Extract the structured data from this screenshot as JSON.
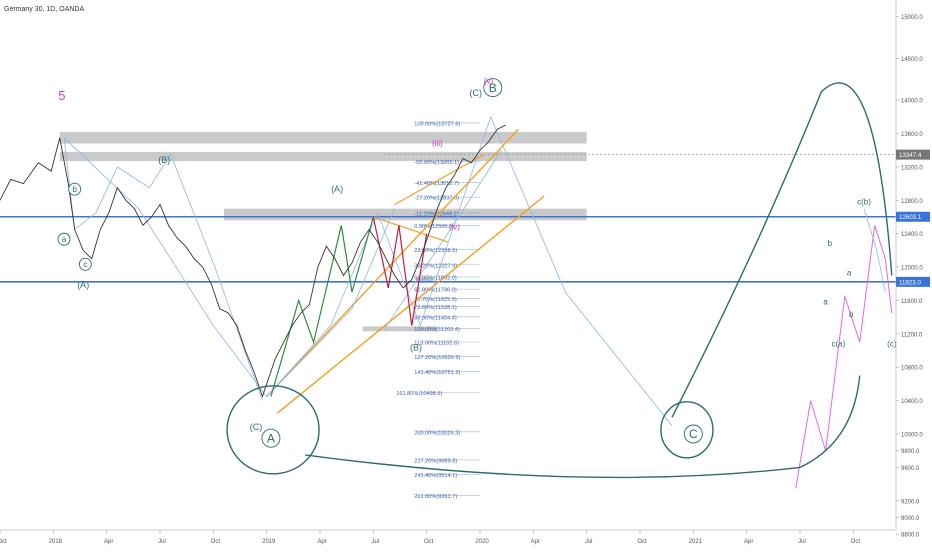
{
  "header": {
    "title": "Germany 30, 1D, OANDA"
  },
  "price_tags": [
    {
      "text": "13347.4",
      "y": 13347.4,
      "color": "#777777"
    },
    {
      "text": "12603.1",
      "y": 12603.1,
      "color": "#3b73d9"
    },
    {
      "text": "11823.0",
      "y": 11823.0,
      "color": "#3b73d9"
    }
  ],
  "chart_data": {
    "type": "line",
    "title": "Germany 30, 1D, OANDA",
    "xlabel": "",
    "ylabel": "",
    "xlim": [
      2017.75,
      2021.95
    ],
    "ylim": [
      8850,
      15200
    ],
    "grid": false,
    "y_ticks": [
      15000,
      14500,
      14000,
      13600,
      13200,
      12800,
      12400,
      12000,
      11600,
      11200,
      10800,
      10400,
      10000,
      9800,
      9600,
      9200,
      9000,
      8800
    ],
    "y_tick_labels": [
      "15000.0",
      "14500.0",
      "14000.0",
      "13600.0",
      "13200.0",
      "12800.0",
      "12400.0",
      "12000.0",
      "11600.0",
      "11200.0",
      "10800.0",
      "10400.0",
      "10000.0",
      "9800.0",
      "9600.0",
      "9200.0",
      "9000.0",
      "8800.0"
    ],
    "x_ticks": [
      {
        "label": "Oct",
        "x": 2017.75
      },
      {
        "label": "2018",
        "x": 2018.0
      },
      {
        "label": "Apr",
        "x": 2018.25
      },
      {
        "label": "Jul",
        "x": 2018.5
      },
      {
        "label": "Oct",
        "x": 2018.75
      },
      {
        "label": "2019",
        "x": 2019.0
      },
      {
        "label": "Apr",
        "x": 2019.25
      },
      {
        "label": "Jul",
        "x": 2019.5
      },
      {
        "label": "Oct",
        "x": 2019.75
      },
      {
        "label": "2020",
        "x": 2020.0
      },
      {
        "label": "Apr",
        "x": 2020.25
      },
      {
        "label": "Jul",
        "x": 2020.5
      },
      {
        "label": "Oct",
        "x": 2020.75
      },
      {
        "label": "2021",
        "x": 2021.0
      },
      {
        "label": "Apr",
        "x": 2021.25
      },
      {
        "label": "Jul",
        "x": 2021.5
      },
      {
        "label": "Oct",
        "x": 2021.75
      }
    ],
    "price": {
      "x": [
        2017.75,
        2017.8,
        2017.86,
        2017.93,
        2017.99,
        2018.03,
        2018.07,
        2018.1,
        2018.14,
        2018.18,
        2018.22,
        2018.26,
        2018.3,
        2018.34,
        2018.38,
        2018.42,
        2018.46,
        2018.5,
        2018.54,
        2018.58,
        2018.62,
        2018.66,
        2018.7,
        2018.74,
        2018.78,
        2018.82,
        2018.86,
        2018.9,
        2018.94,
        2018.98,
        2019.0,
        2019.04,
        2019.08,
        2019.12,
        2019.16,
        2019.2,
        2019.24,
        2019.28,
        2019.32,
        2019.36,
        2019.4,
        2019.44,
        2019.48,
        2019.52,
        2019.56,
        2019.6,
        2019.64,
        2019.68,
        2019.72,
        2019.76,
        2019.8,
        2019.84,
        2019.88,
        2019.92,
        2019.96,
        2020.0,
        2020.04,
        2020.08,
        2020.12
      ],
      "y": [
        12800,
        13050,
        13000,
        13250,
        13150,
        13550,
        13000,
        12450,
        12200,
        12100,
        12450,
        12650,
        12950,
        12800,
        12700,
        12500,
        12600,
        12750,
        12500,
        12350,
        12250,
        12100,
        12000,
        11800,
        11500,
        11450,
        11300,
        11000,
        10750,
        10450,
        10600,
        10900,
        11100,
        11300,
        11450,
        11550,
        12000,
        12250,
        12100,
        11900,
        12050,
        12300,
        12450,
        12300,
        12100,
        11900,
        11750,
        11850,
        12100,
        12400,
        12700,
        12950,
        13100,
        13300,
        13250,
        13400,
        13500,
        13650,
        13700
      ]
    },
    "levels": [
      {
        "label": "100.00%(13727.6)",
        "y": 13727.6
      },
      {
        "label": "-55.90%(13265.1)",
        "y": 13265.1
      },
      {
        "label": "-41.40%(13012.7)",
        "y": 13012.7
      },
      {
        "label": "-27.20%(12837.0)",
        "y": 12837.0
      },
      {
        "label": "-11.10%(12649.2)",
        "y": 12649.2
      },
      {
        "label": "0.00%(12500.9)",
        "y": 12500.9
      },
      {
        "label": "23.60%(12208.6)",
        "y": 12208.6
      },
      {
        "label": "38.20%(12027.9)",
        "y": 12027.9
      },
      {
        "label": "50.00%(11882.0)",
        "y": 11882.0
      },
      {
        "label": "61.80%(11736.0)",
        "y": 11736.0
      },
      {
        "label": "70.70%(11625.9)",
        "y": 11625.9
      },
      {
        "label": "78.60%(11528.1)",
        "y": 11528.1
      },
      {
        "label": "88.60%(11404.4)",
        "y": 11404.4
      },
      {
        "label": "100.00%(11263.4)",
        "y": 11263.4
      },
      {
        "label": "113.00%(11102.6)",
        "y": 11102.6
      },
      {
        "label": "127.20%(10926.9)",
        "y": 10926.9
      },
      {
        "label": "141.40%(10751.2)",
        "y": 10751.2
      },
      {
        "label": "161.80%(10498.9)",
        "y": 10498.9
      },
      {
        "label": "200.00%(10026.3)",
        "y": 10026.3
      },
      {
        "label": "227.20%(9689.8)",
        "y": 9689.8
      },
      {
        "label": "241.40%(9514.1)",
        "y": 9514.1
      },
      {
        "label": "261.80%(9261.7)",
        "y": 9261.7
      }
    ],
    "zones": [
      {
        "x0": 2018.03,
        "x1": 2020.5,
        "y0": 13480,
        "y1": 13620
      },
      {
        "x0": 2018.03,
        "x1": 2020.5,
        "y0": 13270,
        "y1": 13380
      },
      {
        "x0": 2018.8,
        "x1": 2020.5,
        "y0": 12560,
        "y1": 12700
      },
      {
        "x0": 2019.7,
        "x1": 2019.78,
        "y0": 11820,
        "y1": 11870
      },
      {
        "x0": 2019.45,
        "x1": 2019.8,
        "y0": 11230,
        "y1": 11290
      }
    ],
    "h_lines": [
      12603.1,
      11823.0
    ],
    "projection": {
      "x": [
        2021.48,
        2021.55,
        2021.62,
        2021.71,
        2021.78,
        2021.85,
        2021.9,
        2021.93
      ],
      "y": [
        9350,
        10400,
        9800,
        11650,
        11100,
        12500,
        12100,
        11450
      ]
    },
    "wave_labels": [
      {
        "t": "5",
        "x": 2018.04,
        "y": 14000,
        "c": "#d03cc4",
        "s": 13
      },
      {
        "t": "(A)",
        "x": 2018.14,
        "y": 11750,
        "c": "#2c6b6e",
        "s": 9
      },
      {
        "t": "a",
        "x": 2018.05,
        "y": 12300,
        "c": "#2c6b6e",
        "s": 8,
        "circle": true
      },
      {
        "t": "b",
        "x": 2018.1,
        "y": 12900,
        "c": "#2c6b6e",
        "s": 8,
        "circle": true
      },
      {
        "t": "c",
        "x": 2018.15,
        "y": 12000,
        "c": "#2c6b6e",
        "s": 8,
        "circle": true
      },
      {
        "t": "(B)",
        "x": 2018.52,
        "y": 13250,
        "c": "#2c6b6e",
        "s": 9
      },
      {
        "t": "(C)",
        "x": 2018.95,
        "y": 10050,
        "c": "#2c6b6e",
        "s": 9
      },
      {
        "t": "A",
        "x": 2019.02,
        "y": 9900,
        "c": "#2c6b6e",
        "s": 12,
        "circle": true
      },
      {
        "t": "(A)",
        "x": 2019.33,
        "y": 12900,
        "c": "#2c6b6e",
        "s": 9
      },
      {
        "t": "(B)",
        "x": 2019.7,
        "y": 11000,
        "c": "#2c6b6e",
        "s": 9
      },
      {
        "t": "(C)",
        "x": 2019.98,
        "y": 14050,
        "c": "#2c6b6e",
        "s": 9
      },
      {
        "t": "B",
        "x": 2020.06,
        "y": 14100,
        "c": "#2c6b6e",
        "s": 12,
        "circle": true
      },
      {
        "t": "(v)",
        "x": 2020.04,
        "y": 14200,
        "c": "#d03cc4",
        "s": 8
      },
      {
        "t": "(iii)",
        "x": 2019.8,
        "y": 13450,
        "c": "#d03cc4",
        "s": 8
      },
      {
        "t": "(iv)",
        "x": 2019.88,
        "y": 12450,
        "c": "#d03cc4",
        "s": 8
      },
      {
        "t": "C",
        "x": 2021.0,
        "y": 9950,
        "c": "#2c6b6e",
        "s": 12,
        "circle": true
      },
      {
        "t": "c(a)",
        "x": 2021.68,
        "y": 11050,
        "c": "#2c6b6e",
        "s": 8
      },
      {
        "t": "c(b)",
        "x": 2021.8,
        "y": 12750,
        "c": "#2c6b6e",
        "s": 8
      },
      {
        "t": "(c)",
        "x": 2021.93,
        "y": 11050,
        "c": "#2c6b6e",
        "s": 8
      },
      {
        "t": "a",
        "x": 2021.62,
        "y": 11550,
        "c": "#2c6b6e",
        "s": 8
      },
      {
        "t": "b",
        "x": 2021.64,
        "y": 12250,
        "c": "#2c6b6e",
        "s": 8
      },
      {
        "t": "a",
        "x": 2021.73,
        "y": 11900,
        "c": "#2c6b6e",
        "s": 8
      },
      {
        "t": "b",
        "x": 2021.74,
        "y": 11400,
        "c": "#2c6b6e",
        "s": 8
      }
    ]
  }
}
